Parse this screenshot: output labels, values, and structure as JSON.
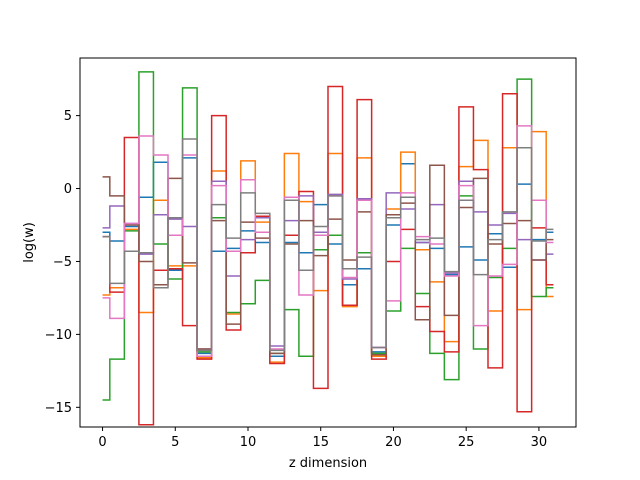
{
  "chart_data": {
    "type": "line",
    "drawstyle": "steps-mid",
    "title": "",
    "xlabel": "z dimension",
    "ylabel": "log(w)",
    "xlim": [
      -1.55,
      32.55
    ],
    "ylim": [
      -16.35,
      8.95
    ],
    "xticks": [
      0,
      5,
      10,
      15,
      20,
      25,
      30
    ],
    "yticks": [
      -15,
      -10,
      -5,
      0,
      5
    ],
    "grid": false,
    "legend": "none",
    "x": [
      0,
      1,
      2,
      3,
      4,
      5,
      6,
      7,
      8,
      9,
      10,
      11,
      12,
      13,
      14,
      15,
      16,
      17,
      18,
      19,
      20,
      21,
      22,
      23,
      24,
      25,
      26,
      27,
      28,
      29,
      30,
      31
    ],
    "series": [
      {
        "color": "#1f77b4",
        "values": [
          -3.0,
          -3.6,
          -2.6,
          -0.6,
          1.8,
          -5.6,
          2.1,
          -11.3,
          -4.3,
          -4.1,
          -2.9,
          -3.7,
          -11.5,
          -3.7,
          -4.4,
          -1.1,
          -3.8,
          -6.6,
          -5.5,
          -11.2,
          -2.5,
          1.7,
          -3.7,
          -4.1,
          -5.9,
          -4.0,
          -4.9,
          -3.1,
          -5.4,
          0.3,
          -3.5,
          -3.0
        ]
      },
      {
        "color": "#ff7f0e",
        "values": [
          -7.3,
          -6.8,
          -2.8,
          -8.5,
          -0.8,
          -5.3,
          -5.3,
          -11.6,
          1.2,
          -8.6,
          1.9,
          -2.3,
          -11.9,
          2.4,
          -0.9,
          -7.0,
          2.4,
          -8.1,
          2.1,
          -11.5,
          -1.4,
          2.5,
          -4.2,
          -6.4,
          -10.5,
          1.5,
          3.3,
          -8.4,
          2.8,
          -8.3,
          3.9,
          -7.4
        ]
      },
      {
        "color": "#2ca02c",
        "values": [
          -14.5,
          -11.7,
          -2.9,
          8.0,
          -3.8,
          -6.2,
          6.9,
          -11.2,
          -2.0,
          -8.5,
          -7.9,
          -6.3,
          -11.3,
          -8.3,
          -11.5,
          -4.2,
          -3.2,
          -8.0,
          -4.4,
          -11.3,
          -8.4,
          -4.1,
          -7.2,
          -11.3,
          -13.1,
          -0.5,
          -11.0,
          -6.1,
          -4.1,
          7.5,
          -7.4,
          -6.8
        ]
      },
      {
        "color": "#d62728",
        "values": [
          -3.3,
          -7.1,
          3.5,
          -16.2,
          -5.6,
          -5.5,
          -9.4,
          -11.7,
          5.0,
          -9.7,
          -4.4,
          -1.9,
          -12.0,
          -3.2,
          -0.2,
          -13.7,
          7.0,
          -8.0,
          6.1,
          -11.7,
          -5.0,
          -2.8,
          -8.1,
          -9.8,
          -11.2,
          5.6,
          1.3,
          -12.3,
          6.5,
          -15.3,
          -2.7,
          -6.6
        ]
      },
      {
        "color": "#9467bd",
        "values": [
          -2.7,
          -1.2,
          -2.4,
          -4.5,
          -1.8,
          -2.1,
          -2.6,
          -11.0,
          0.5,
          -6.0,
          -3.5,
          -2.0,
          -10.8,
          -2.2,
          -0.5,
          -3.0,
          -0.4,
          -6.2,
          -0.7,
          -10.9,
          -0.3,
          -1.4,
          -3.7,
          -1.1,
          -5.8,
          0.5,
          -1.6,
          -2.5,
          -1.7,
          -3.5,
          -4.9,
          -4.5
        ]
      },
      {
        "color": "#8c564b",
        "values": [
          0.8,
          -0.5,
          -2.5,
          -5.0,
          -6.6,
          0.7,
          -5.1,
          -11.0,
          -2.2,
          -9.3,
          -2.3,
          -3.4,
          -11.3,
          -3.8,
          -2.2,
          -4.6,
          -2.1,
          -4.9,
          -1.6,
          -11.4,
          -1.8,
          -1.0,
          -9.0,
          1.6,
          -8.7,
          -1.3,
          0.7,
          -3.8,
          -2.4,
          -2.2,
          -4.9,
          -3.5
        ]
      },
      {
        "color": "#e377c2",
        "values": [
          -7.5,
          -8.9,
          -2.4,
          3.6,
          2.3,
          -3.2,
          2.3,
          -11.5,
          0.2,
          -4.3,
          0.6,
          -3.0,
          -11.0,
          -0.6,
          -7.3,
          -3.2,
          -0.5,
          -6.1,
          -0.8,
          -10.9,
          -7.7,
          -0.3,
          -3.3,
          -3.8,
          -6.0,
          0.2,
          -9.4,
          -6.0,
          -5.2,
          4.3,
          -0.8,
          -3.7
        ]
      },
      {
        "color": "#7f7f7f",
        "values": [
          -3.3,
          -6.5,
          -4.3,
          -4.4,
          -6.8,
          -2.0,
          3.4,
          -11.1,
          -1.1,
          -3.4,
          -0.3,
          -1.7,
          -11.1,
          -0.8,
          -5.6,
          -2.6,
          -0.5,
          -5.5,
          -4.7,
          -10.9,
          -2.0,
          -0.6,
          -3.5,
          -3.4,
          -5.7,
          -0.8,
          -5.9,
          -3.5,
          -1.6,
          2.8,
          -3.6,
          -2.8
        ]
      }
    ]
  }
}
